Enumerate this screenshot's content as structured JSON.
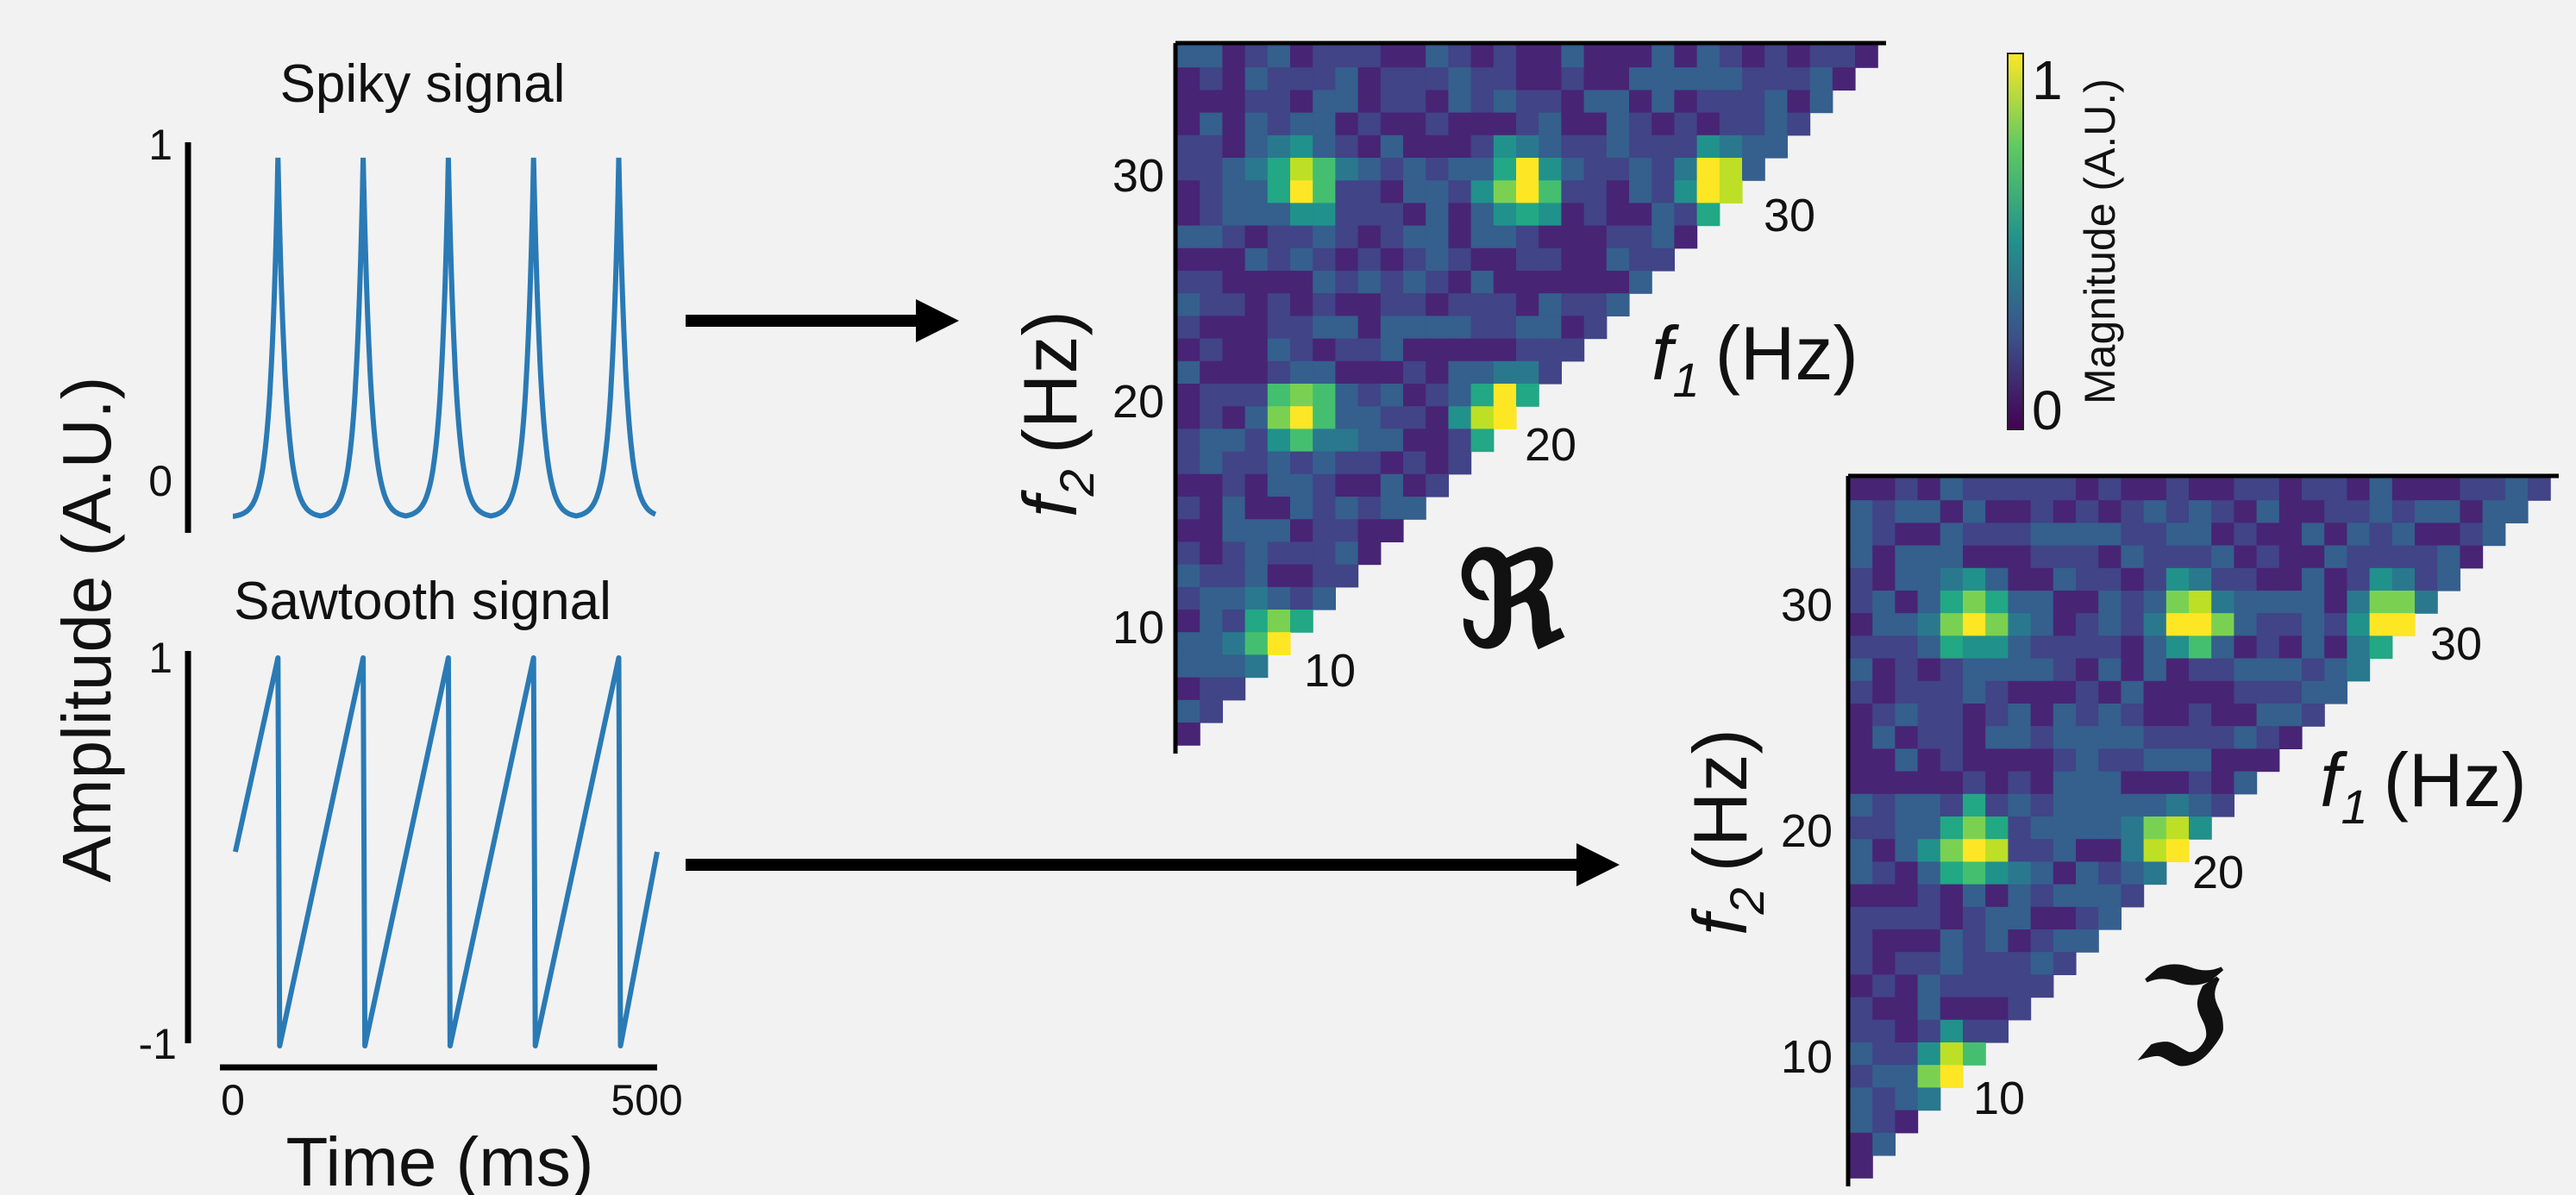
{
  "chart_data": [
    {
      "type": "line",
      "title": "Spiky signal",
      "ylabel": "Amplitude (A.U.)",
      "ylim": [
        0,
        1
      ],
      "yticks": [
        "1",
        "0"
      ],
      "series": [
        {
          "color": "#2a7ab5",
          "peaks_x_ms": [
            55,
            155,
            255,
            355,
            455
          ],
          "min": 0,
          "max": 1
        }
      ]
    },
    {
      "type": "line",
      "title": "Sawtooth signal",
      "xlabel": "Time (ms)",
      "ylabel": "Amplitude (A.U.)",
      "xlim": [
        0,
        500
      ],
      "ylim": [
        -1,
        1
      ],
      "xticks": [
        "0",
        "500"
      ],
      "yticks": [
        "1",
        "-1"
      ],
      "series": [
        {
          "color": "#2a7ab5",
          "period_ms": 100,
          "peaks_x_ms": [
            55,
            155,
            255,
            355,
            455
          ],
          "min": -1,
          "max": 1
        }
      ]
    },
    {
      "type": "heatmap",
      "part_symbol": "ℜ",
      "xlabel_main": "f",
      "xlabel_sub": "1",
      "xlabel_unit": "(Hz)",
      "ylabel_main": "f",
      "ylabel_sub": "2",
      "ylabel_unit": "(Hz)",
      "yticks": [
        "10",
        "20",
        "30"
      ],
      "diag_ticks": [
        "10",
        "20",
        "30"
      ],
      "peaks_hz": [
        [
          10,
          10
        ],
        [
          11,
          20
        ],
        [
          11,
          30
        ],
        [
          20,
          20
        ],
        [
          21,
          30
        ],
        [
          30,
          30
        ]
      ],
      "color_range": [
        0,
        1
      ]
    },
    {
      "type": "heatmap",
      "part_symbol": "ℑ",
      "xlabel_main": "f",
      "xlabel_sub": "1",
      "xlabel_unit": "(Hz)",
      "ylabel_main": "f",
      "ylabel_sub": "2",
      "ylabel_unit": "(Hz)",
      "yticks": [
        "10",
        "20",
        "30"
      ],
      "diag_ticks": [
        "10",
        "20",
        "30"
      ],
      "peaks_hz": [
        [
          10,
          10
        ],
        [
          11,
          20
        ],
        [
          11,
          30
        ],
        [
          20,
          20
        ],
        [
          21,
          30
        ],
        [
          30,
          30
        ]
      ],
      "color_range": [
        0,
        1
      ]
    }
  ],
  "colorbar": {
    "label": "Magnitude (A.U.)",
    "max_label": "1",
    "min_label": "0",
    "colors": [
      "#440154",
      "#3b528b",
      "#21918c",
      "#5ec962",
      "#fde725"
    ]
  },
  "colors": {
    "line": "#2a7ab5",
    "arrow": "#000000",
    "background": "#f2f2f2"
  }
}
